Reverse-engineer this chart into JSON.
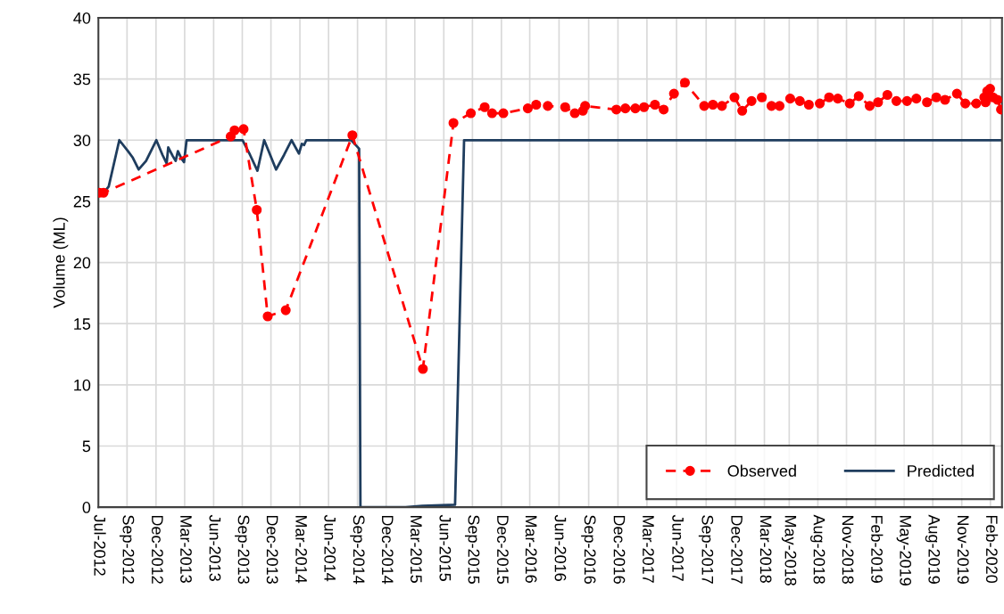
{
  "chart_data": {
    "type": "line",
    "ylabel": "Volume (ML)",
    "xlim": [
      "2012-07-01",
      "2020-03-08"
    ],
    "xticks": [
      {
        "value": "2012-07-01",
        "label": "Jul-2012"
      },
      {
        "value": "2012-09-28",
        "label": "Sep-2012"
      },
      {
        "value": "2012-12-27",
        "label": "Dec-2012"
      },
      {
        "value": "2013-03-26",
        "label": "Mar-2013"
      },
      {
        "value": "2013-06-24",
        "label": "Jun-2013"
      },
      {
        "value": "2013-09-21",
        "label": "Sep-2013"
      },
      {
        "value": "2013-12-19",
        "label": "Dec-2013"
      },
      {
        "value": "2014-03-19",
        "label": "Mar-2014"
      },
      {
        "value": "2014-06-16",
        "label": "Jun-2014"
      },
      {
        "value": "2014-09-14",
        "label": "Sep-2014"
      },
      {
        "value": "2014-12-12",
        "label": "Dec-2014"
      },
      {
        "value": "2015-03-11",
        "label": "Mar-2015"
      },
      {
        "value": "2015-06-09",
        "label": "Jun-2015"
      },
      {
        "value": "2015-09-06",
        "label": "Sep-2015"
      },
      {
        "value": "2015-12-05",
        "label": "Dec-2015"
      },
      {
        "value": "2016-03-02",
        "label": "Mar-2016"
      },
      {
        "value": "2016-06-01",
        "label": "Jun-2016"
      },
      {
        "value": "2016-09-01",
        "label": "Sep-2016"
      },
      {
        "value": "2016-12-01",
        "label": "Dec-2016"
      },
      {
        "value": "2017-03-01",
        "label": "Mar-2017"
      },
      {
        "value": "2017-06-01",
        "label": "Jun-2017"
      },
      {
        "value": "2017-09-01",
        "label": "Sep-2017"
      },
      {
        "value": "2017-12-01",
        "label": "Dec-2017"
      },
      {
        "value": "2018-03-01",
        "label": "Mar-2018"
      },
      {
        "value": "2018-05-17",
        "label": "May-2018"
      },
      {
        "value": "2018-08-14",
        "label": "Aug-2018"
      },
      {
        "value": "2018-11-11",
        "label": "Nov-2018"
      },
      {
        "value": "2019-02-09",
        "label": "Feb-2019"
      },
      {
        "value": "2019-05-09",
        "label": "May-2019"
      },
      {
        "value": "2019-08-06",
        "label": "Aug-2019"
      },
      {
        "value": "2019-11-04",
        "label": "Nov-2019"
      },
      {
        "value": "2020-02-01",
        "label": "Feb-2020"
      }
    ],
    "ylim": [
      0,
      40
    ],
    "yticks": [
      0,
      5,
      10,
      15,
      20,
      25,
      30,
      35,
      40
    ],
    "grid": true,
    "legend": "bottom right",
    "series": [
      {
        "name": "Observed",
        "color": "#ff0000",
        "marker": "circle",
        "line_style": "dashed",
        "x": [
          "2012-07-04",
          "2012-07-17",
          "2013-08-16",
          "2013-08-28",
          "2013-09-25",
          "2013-11-05",
          "2013-12-09",
          "2014-02-03",
          "2014-08-29",
          "2015-04-05",
          "2015-07-09",
          "2015-09-01",
          "2015-10-14",
          "2015-11-06",
          "2015-12-11",
          "2016-02-25",
          "2016-03-22",
          "2016-04-27",
          "2016-06-20",
          "2016-07-20",
          "2016-08-14",
          "2016-08-21",
          "2016-11-26",
          "2016-12-24",
          "2017-01-24",
          "2017-02-20",
          "2017-03-26",
          "2017-04-22",
          "2017-05-24",
          "2017-06-27",
          "2017-08-26",
          "2017-09-22",
          "2017-10-20",
          "2017-11-28",
          "2017-12-22",
          "2018-01-20",
          "2018-02-21",
          "2018-03-23",
          "2018-04-17",
          "2018-05-20",
          "2018-06-19",
          "2018-07-17",
          "2018-08-20",
          "2018-09-18",
          "2018-10-15",
          "2018-11-21",
          "2018-12-19",
          "2019-01-22",
          "2019-02-17",
          "2019-03-18",
          "2019-04-15",
          "2019-05-18",
          "2019-06-16",
          "2019-07-19",
          "2019-08-17",
          "2019-09-13",
          "2019-10-20",
          "2019-11-15",
          "2019-12-19",
          "2020-01-13",
          "2020-01-17",
          "2020-01-22",
          "2020-01-31",
          "2020-02-09",
          "2020-02-23",
          "2020-03-05"
        ],
        "values": [
          25.7,
          25.7,
          30.3,
          30.8,
          30.9,
          24.3,
          15.6,
          16.1,
          30.4,
          11.3,
          31.4,
          32.2,
          32.7,
          32.2,
          32.2,
          32.6,
          32.9,
          32.8,
          32.7,
          32.2,
          32.4,
          32.8,
          32.5,
          32.6,
          32.6,
          32.7,
          32.9,
          32.5,
          33.8,
          34.7,
          32.8,
          32.9,
          32.8,
          33.5,
          32.4,
          33.2,
          33.5,
          32.8,
          32.8,
          33.4,
          33.2,
          32.9,
          33.0,
          33.5,
          33.4,
          33.0,
          33.6,
          32.8,
          33.1,
          33.7,
          33.2,
          33.2,
          33.4,
          33.1,
          33.5,
          33.3,
          33.8,
          33.0,
          33.0,
          33.5,
          33.1,
          34.0,
          34.2,
          33.5,
          33.3,
          32.5
        ]
      },
      {
        "name": "Predicted",
        "color": "#1f3d5e",
        "marker": "none",
        "line_style": "solid",
        "x": [
          "2012-07-20",
          "2012-08-02",
          "2012-09-04",
          "2012-10-01",
          "2012-10-15",
          "2012-11-03",
          "2012-11-26",
          "2012-12-28",
          "2013-01-16",
          "2013-01-29",
          "2013-02-03",
          "2013-02-17",
          "2013-02-26",
          "2013-03-05",
          "2013-03-16",
          "2013-03-24",
          "2013-04-01",
          "2013-09-22",
          "2013-10-15",
          "2013-11-07",
          "2013-11-28",
          "2014-01-04",
          "2014-01-29",
          "2014-02-21",
          "2014-03-16",
          "2014-03-25",
          "2014-04-01",
          "2014-04-08",
          "2014-08-25",
          "2014-09-12",
          "2014-09-19",
          "2014-09-23",
          "2015-02-10",
          "2015-04-03",
          "2015-07-14",
          "2015-08-11",
          "2020-03-08"
        ],
        "values": [
          25.8,
          26.2,
          30.0,
          29.1,
          28.6,
          27.6,
          28.3,
          30.0,
          28.8,
          28.1,
          29.4,
          28.7,
          28.3,
          29.1,
          28.5,
          28.2,
          30.0,
          30.0,
          28.8,
          27.5,
          30.0,
          27.6,
          28.8,
          30.0,
          28.9,
          29.7,
          29.6,
          30.0,
          30.0,
          29.5,
          29.3,
          0,
          0,
          0.1,
          0.2,
          30.0,
          30.0
        ]
      }
    ]
  }
}
